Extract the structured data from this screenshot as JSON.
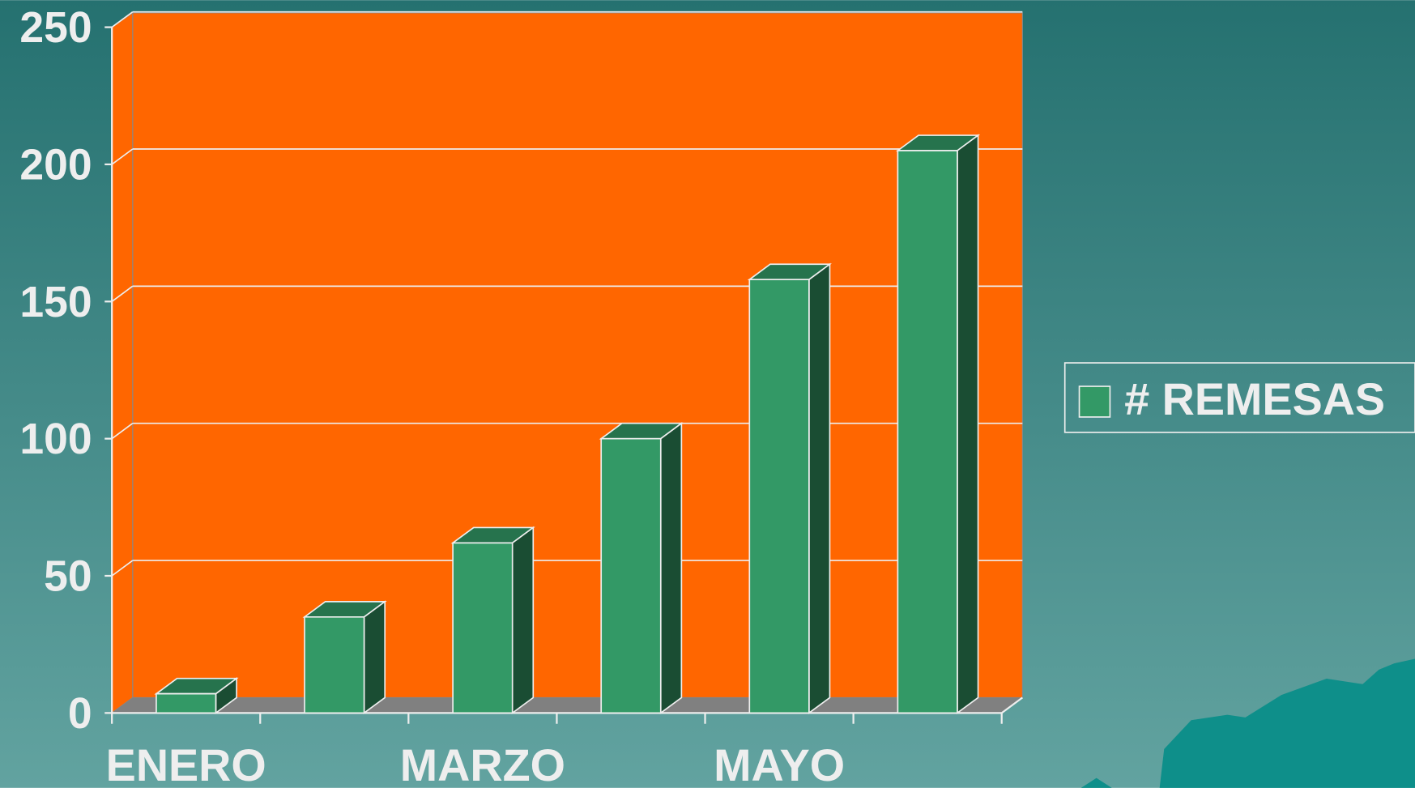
{
  "chart_data": {
    "type": "bar3d",
    "categories": [
      "ENERO",
      null,
      "MARZO",
      null,
      "MAYO",
      null
    ],
    "series": [
      {
        "name": "# REMESAS",
        "color": "#339966",
        "values": [
          7,
          35,
          62,
          100,
          158,
          205
        ]
      }
    ],
    "ylim": [
      0,
      250
    ],
    "yticks": [
      0,
      50,
      100,
      150,
      200,
      250
    ],
    "grid": true,
    "legend": "right"
  }
}
